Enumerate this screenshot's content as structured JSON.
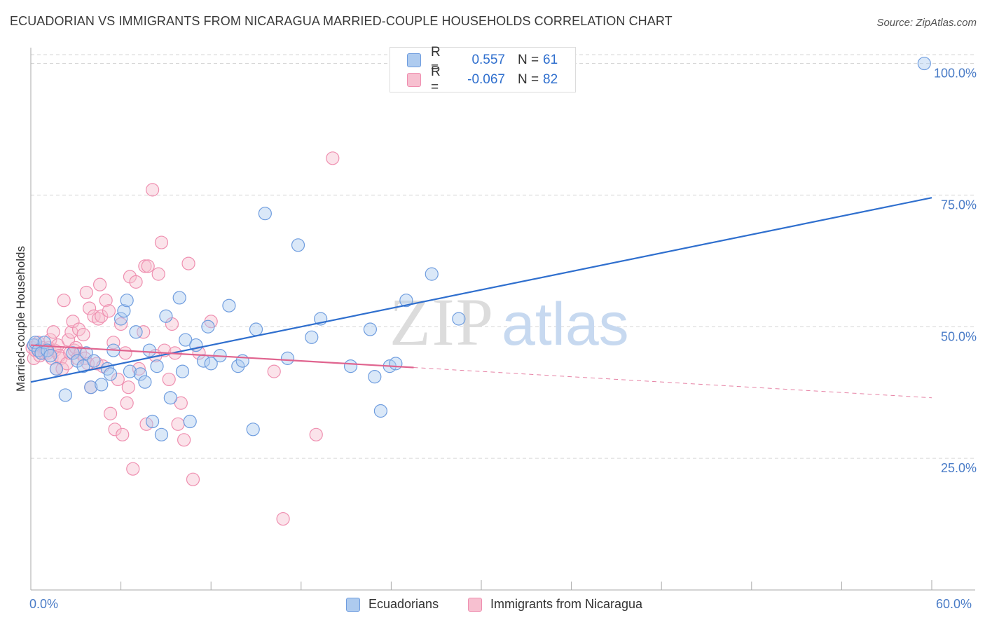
{
  "title": "ECUADORIAN VS IMMIGRANTS FROM NICARAGUA MARRIED-COUPLE HOUSEHOLDS CORRELATION CHART",
  "source": "Source: ZipAtlas.com",
  "watermark": {
    "zip": "ZIP",
    "atlas": "atlas"
  },
  "colors": {
    "blue": "#2f6fce",
    "blue_fill": "#aecbef",
    "blue_stroke": "#6f9ddf",
    "pink": "#e0648f",
    "pink_fill": "#f7c0d0",
    "pink_stroke": "#ef8fb0",
    "axis_text": "#4a7cc7",
    "grid": "#d6d6d6"
  },
  "legend_top": {
    "rows": [
      {
        "r_label": "R =",
        "r_value": "0.557",
        "n_label": "N =",
        "n_value": "61"
      },
      {
        "r_label": "R =",
        "r_value": "-0.067",
        "n_label": "N =",
        "n_value": "82"
      }
    ]
  },
  "legend_bottom": [
    {
      "label": "Ecuadorians"
    },
    {
      "label": "Immigrants from Nicaragua"
    }
  ],
  "chart_data": {
    "type": "scatter",
    "title": "ECUADORIAN VS IMMIGRANTS FROM NICARAGUA MARRIED-COUPLE HOUSEHOLDS CORRELATION CHART",
    "xlabel": "",
    "ylabel": "Married-couple Households",
    "xlim": [
      0,
      60
    ],
    "ylim": [
      0,
      103
    ],
    "x_tick_labels": {
      "left": "0.0%",
      "right": "60.0%"
    },
    "y_ticks": [
      {
        "value": 25,
        "label": "25.0%"
      },
      {
        "value": 50,
        "label": "50.0%"
      },
      {
        "value": 75,
        "label": "75.0%"
      },
      {
        "value": 100,
        "label": "100.0%"
      }
    ],
    "grid": true,
    "series": [
      {
        "name": "Ecuadorians",
        "r": 0.557,
        "n": 61,
        "trend": {
          "x0": 0,
          "y0": 39.5,
          "x1": 60,
          "y1": 74.5,
          "solid_to": 60
        },
        "points": [
          [
            0.2,
            46.5
          ],
          [
            0.3,
            47
          ],
          [
            0.5,
            45.5
          ],
          [
            0.7,
            45
          ],
          [
            0.9,
            47
          ],
          [
            1.1,
            45.5
          ],
          [
            1.3,
            44.5
          ],
          [
            1.7,
            42
          ],
          [
            2.3,
            37
          ],
          [
            2.8,
            45
          ],
          [
            3.1,
            43.5
          ],
          [
            3.5,
            42.5
          ],
          [
            3.7,
            45
          ],
          [
            4,
            38.5
          ],
          [
            4.2,
            43.5
          ],
          [
            4.7,
            39
          ],
          [
            5.1,
            42
          ],
          [
            5.3,
            41
          ],
          [
            5.5,
            45.5
          ],
          [
            6,
            51.5
          ],
          [
            6.2,
            53
          ],
          [
            6.4,
            55
          ],
          [
            6.6,
            41.5
          ],
          [
            7,
            49
          ],
          [
            7.3,
            41
          ],
          [
            7.6,
            39.5
          ],
          [
            7.9,
            45.5
          ],
          [
            8.1,
            32
          ],
          [
            8.4,
            42.5
          ],
          [
            8.7,
            29.5
          ],
          [
            9,
            52
          ],
          [
            9.3,
            36.5
          ],
          [
            9.9,
            55.5
          ],
          [
            10.1,
            41.5
          ],
          [
            10.3,
            47.5
          ],
          [
            10.6,
            32
          ],
          [
            11,
            46.5
          ],
          [
            11.5,
            43.5
          ],
          [
            11.8,
            50
          ],
          [
            12,
            43
          ],
          [
            12.6,
            44.5
          ],
          [
            13.2,
            54
          ],
          [
            13.8,
            42.5
          ],
          [
            14.1,
            43.5
          ],
          [
            14.8,
            30.5
          ],
          [
            15,
            49.5
          ],
          [
            15.6,
            71.5
          ],
          [
            17.1,
            44
          ],
          [
            17.8,
            65.5
          ],
          [
            18.7,
            48
          ],
          [
            19.3,
            51.5
          ],
          [
            21.3,
            42.5
          ],
          [
            22.6,
            49.5
          ],
          [
            22.9,
            40.5
          ],
          [
            23.3,
            34
          ],
          [
            23.9,
            42.5
          ],
          [
            24.3,
            43
          ],
          [
            25,
            55
          ],
          [
            26.7,
            60
          ],
          [
            28.5,
            51.5
          ],
          [
            59.5,
            100
          ]
        ]
      },
      {
        "name": "Immigrants from Nicaragua",
        "r": -0.067,
        "n": 82,
        "trend": {
          "x0": 0,
          "y0": 46.5,
          "x1": 60,
          "y1": 36.5,
          "solid_to": 25.5
        },
        "points": [
          [
            0.1,
            46
          ],
          [
            0.2,
            44
          ],
          [
            0.3,
            45.5
          ],
          [
            0.4,
            46.5
          ],
          [
            0.5,
            47
          ],
          [
            0.6,
            44.5
          ],
          [
            0.7,
            45
          ],
          [
            0.8,
            46
          ],
          [
            0.9,
            45
          ],
          [
            1,
            45.5
          ],
          [
            1.1,
            45
          ],
          [
            1.2,
            46
          ],
          [
            1.3,
            47.5
          ],
          [
            1.4,
            44
          ],
          [
            1.5,
            49
          ],
          [
            1.6,
            45.5
          ],
          [
            1.7,
            42
          ],
          [
            1.8,
            46.5
          ],
          [
            1.9,
            44.5
          ],
          [
            2,
            44
          ],
          [
            2.1,
            42
          ],
          [
            2.2,
            55
          ],
          [
            2.4,
            43
          ],
          [
            2.5,
            47.5
          ],
          [
            2.6,
            45
          ],
          [
            2.7,
            49
          ],
          [
            2.8,
            51
          ],
          [
            2.9,
            45.5
          ],
          [
            3,
            46
          ],
          [
            3.1,
            44
          ],
          [
            3.2,
            49.5
          ],
          [
            3.3,
            45
          ],
          [
            3.5,
            48.5
          ],
          [
            3.6,
            44
          ],
          [
            3.7,
            56.5
          ],
          [
            3.8,
            43
          ],
          [
            3.9,
            53.5
          ],
          [
            4,
            38.5
          ],
          [
            4.2,
            52
          ],
          [
            4.4,
            43
          ],
          [
            4.5,
            51.5
          ],
          [
            4.6,
            58
          ],
          [
            4.7,
            52
          ],
          [
            4.8,
            42.5
          ],
          [
            5,
            55
          ],
          [
            5.2,
            53
          ],
          [
            5.3,
            33.5
          ],
          [
            5.5,
            47
          ],
          [
            5.6,
            30.5
          ],
          [
            5.8,
            40
          ],
          [
            6,
            50.5
          ],
          [
            6.1,
            29.5
          ],
          [
            6.3,
            45
          ],
          [
            6.4,
            35.5
          ],
          [
            6.5,
            38.5
          ],
          [
            6.6,
            59.5
          ],
          [
            6.8,
            23
          ],
          [
            7,
            58.5
          ],
          [
            7.2,
            42
          ],
          [
            7.5,
            49
          ],
          [
            7.6,
            61.5
          ],
          [
            7.7,
            31.5
          ],
          [
            7.8,
            61.5
          ],
          [
            8.1,
            76
          ],
          [
            8.3,
            44.5
          ],
          [
            8.5,
            60
          ],
          [
            8.7,
            66
          ],
          [
            8.9,
            45.5
          ],
          [
            9.2,
            40
          ],
          [
            9.4,
            50.5
          ],
          [
            9.6,
            45
          ],
          [
            9.8,
            31.5
          ],
          [
            10,
            35.5
          ],
          [
            10.2,
            28.5
          ],
          [
            10.5,
            62
          ],
          [
            10.8,
            21
          ],
          [
            11.2,
            45
          ],
          [
            12,
            51
          ],
          [
            16.2,
            41.5
          ],
          [
            16.8,
            13.5
          ],
          [
            19,
            29.5
          ],
          [
            20.1,
            82
          ]
        ]
      }
    ]
  }
}
